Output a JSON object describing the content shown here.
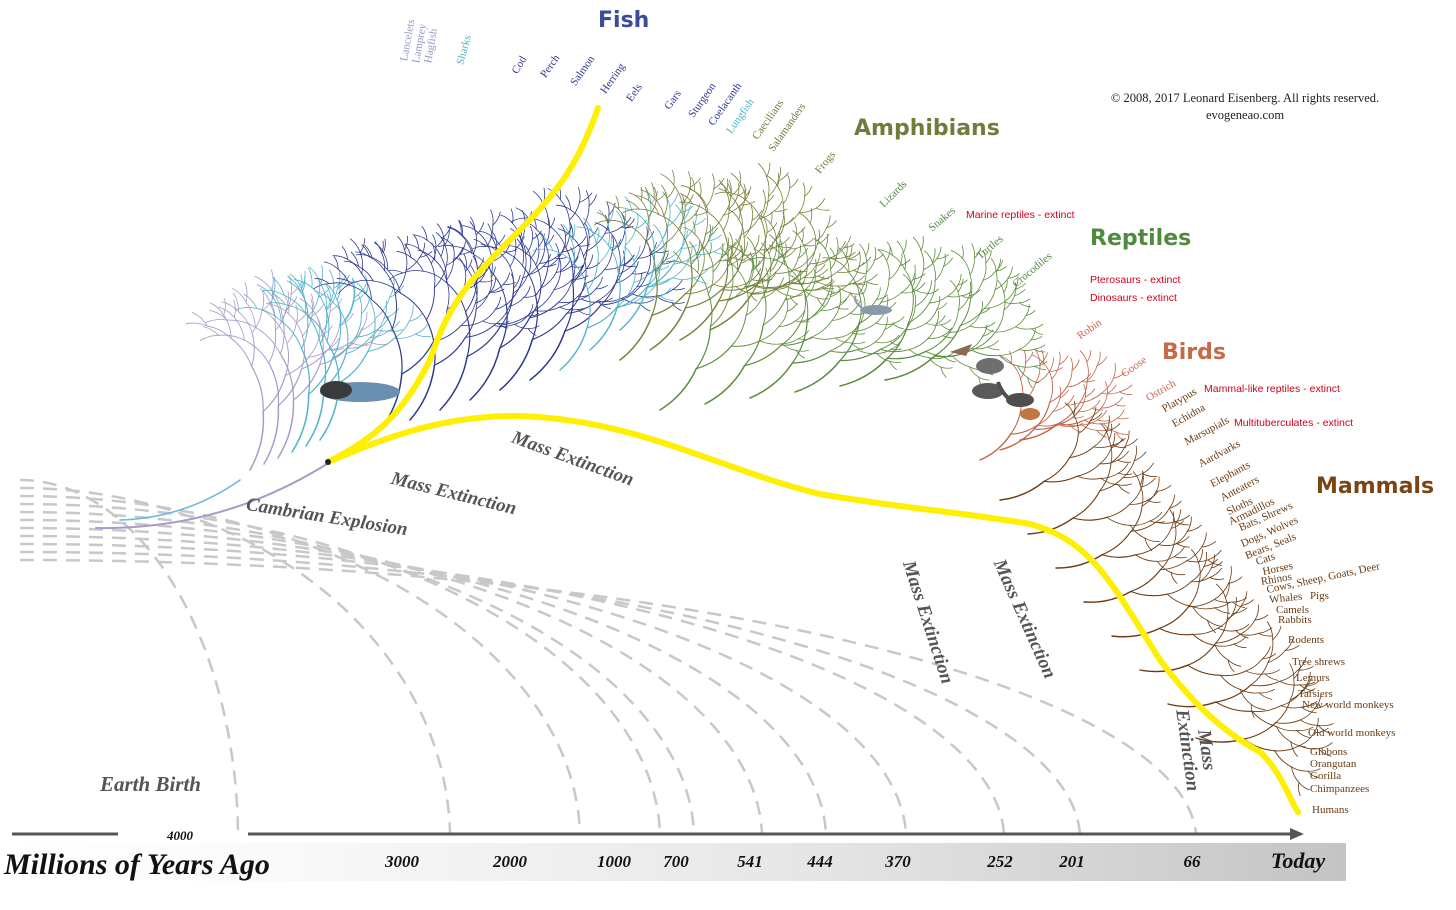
{
  "copyright": {
    "line1": "© 2008, 2017 Leonard Eisenberg. All rights reserved.",
    "line2": "evogeneao.com"
  },
  "timeline": {
    "title": "Millions of Years Ago",
    "top_tick": "4000",
    "ticks": [
      "3000",
      "2000",
      "1000",
      "700",
      "541",
      "444",
      "370",
      "252",
      "201",
      "66",
      "Today"
    ]
  },
  "eras": {
    "earth_birth": "Earth Birth",
    "cambrian": "Cambrian Explosion",
    "mass_extinction": "Mass Extinction",
    "mass": "Mass",
    "extinction": "Extinction"
  },
  "groups": {
    "fish": {
      "name": "Fish",
      "color": "#3b4a9b"
    },
    "amphibians": {
      "name": "Amphibians",
      "color": "#6e7d3c"
    },
    "reptiles": {
      "name": "Reptiles",
      "color": "#4f8a3f"
    },
    "birds": {
      "name": "Birds",
      "color": "#c66a4a"
    },
    "mammals": {
      "name": "Mammals",
      "color": "#7a4415"
    }
  },
  "fish_taxa": [
    "Lancelets",
    "Lamprey",
    "Hagfish",
    "Sharks",
    "Cod",
    "Perch",
    "Salmon",
    "Herring",
    "Eels",
    "Gars",
    "Sturgeon",
    "Coelacanth",
    "Lungfish"
  ],
  "amphibian_taxa": [
    "Caecilians",
    "Salamanders",
    "Frogs"
  ],
  "reptile_taxa": [
    "Lizards",
    "Snakes",
    "Turtles",
    "Crocodiles"
  ],
  "bird_taxa": [
    "Robin",
    "Goose",
    "Ostrich"
  ],
  "extinct": {
    "marine": "Marine reptiles - extinct",
    "pterosaurs": "Pterosaurs - extinct",
    "dinosaurs": "Dinosaurs - extinct",
    "mammal_like": "Mammal-like reptiles - extinct",
    "multituberculates": "Multituberculates - extinct"
  },
  "mammal_taxa": [
    "Platypus",
    "Echidna",
    "Marsupials",
    "Aardvarks",
    "Elephants",
    "Anteaters",
    "Sloths",
    "Armadillos",
    "Bats, Shrews",
    "Dogs, Wolves",
    "Bears, Seals",
    "Cats",
    "Horses",
    "Rhinos",
    "Cows, Sheep, Goats, Deer",
    "Whales",
    "Pigs",
    "Camels",
    "Rabbits",
    "Rodents",
    "Tree shrews",
    "Lemurs",
    "Tarsiers",
    "New world monkeys",
    "Old world monkeys",
    "Gibbons",
    "Orangutan",
    "Gorilla",
    "Chimpanzees",
    "Humans"
  ],
  "colors": {
    "human_path": "#ffef00",
    "fish_dark": "#2e3a8f",
    "fish_light": "#4fb3c9",
    "primitive": "#a99ac7",
    "amphibian": "#7a7f3a",
    "reptile": "#5c8d3c",
    "bird": "#c0654a",
    "mammal": "#6b3a10",
    "extinct": "#d0021b",
    "arc": "#c4c4c4"
  }
}
